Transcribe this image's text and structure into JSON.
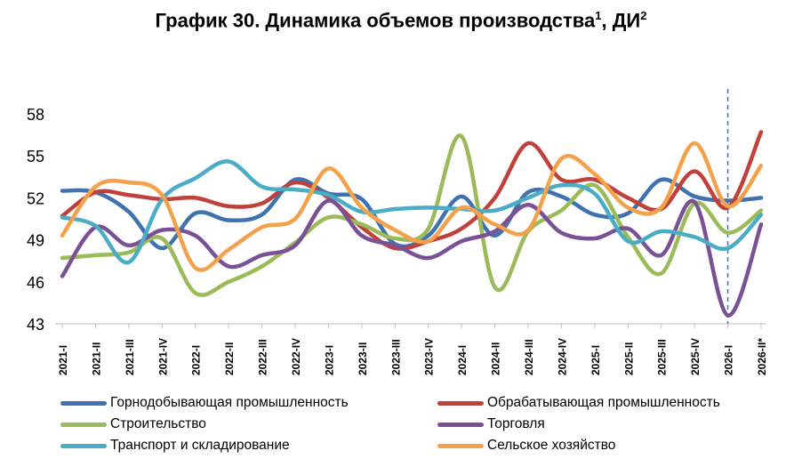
{
  "title": {
    "text": "График 30. Динамика объемов производства",
    "note1": "1",
    "sep": ", ДИ",
    "note2": "2"
  },
  "chart_data": {
    "type": "line",
    "categories": [
      "2021-I",
      "2021-II",
      "2021-III",
      "2021-IV",
      "2022-I",
      "2022-II",
      "2022-III",
      "2022-IV",
      "2023-I",
      "2023-II",
      "2023-III",
      "2023-IV",
      "2024-I",
      "2024-II",
      "2024-III",
      "2024-IV",
      "2025-I",
      "2025-II",
      "2025-III",
      "2025-IV",
      "2026-I",
      "2026-II*"
    ],
    "ylim": [
      43,
      58
    ],
    "yticks": [
      43,
      46,
      49,
      52,
      55,
      58
    ],
    "grid": false,
    "legend_position": "bottom",
    "vertical_marker_category": "2026-I",
    "series": [
      {
        "name": "Горнодобывающая промышленность",
        "color": "#3F72AF",
        "values": [
          52.5,
          52.4,
          51.0,
          48.4,
          50.9,
          50.4,
          50.8,
          53.3,
          52.3,
          51.9,
          48.7,
          49.3,
          52.1,
          49.3,
          52.4,
          52.1,
          50.8,
          50.9,
          53.3,
          52.1,
          51.8,
          52.0
        ]
      },
      {
        "name": "Обрабатывающая промышленность",
        "color": "#C0403B",
        "values": [
          50.7,
          52.4,
          52.2,
          51.9,
          52.0,
          51.4,
          51.6,
          53.1,
          52.0,
          49.9,
          48.4,
          48.9,
          49.8,
          52.0,
          55.9,
          53.3,
          53.3,
          52.0,
          51.2,
          53.9,
          51.3,
          56.7
        ]
      },
      {
        "name": "Строительство",
        "color": "#9BBB59",
        "values": [
          47.7,
          47.9,
          48.1,
          49.1,
          45.2,
          46.0,
          47.1,
          48.8,
          50.6,
          50.1,
          49.1,
          49.8,
          56.4,
          45.6,
          49.6,
          51.1,
          52.9,
          49.2,
          46.6,
          51.6,
          49.5,
          51.1
        ]
      },
      {
        "name": "Торговля",
        "color": "#7A5195",
        "values": [
          46.4,
          49.9,
          48.6,
          49.7,
          49.3,
          47.1,
          47.9,
          48.6,
          51.8,
          49.3,
          48.6,
          47.7,
          48.9,
          49.6,
          51.5,
          49.5,
          49.1,
          49.8,
          47.9,
          51.7,
          43.6,
          50.1
        ]
      },
      {
        "name": "Транспорт и складирование",
        "color": "#4BACC6",
        "values": [
          50.6,
          50.0,
          47.4,
          51.9,
          53.4,
          54.6,
          52.8,
          52.6,
          52.2,
          51.0,
          51.2,
          51.3,
          51.2,
          51.1,
          52.0,
          52.9,
          52.3,
          48.9,
          49.6,
          49.2,
          48.4,
          50.8
        ]
      },
      {
        "name": "Сельское хозяйство",
        "color": "#F4A14B",
        "values": [
          49.3,
          52.8,
          53.1,
          52.2,
          47.0,
          48.3,
          49.9,
          50.5,
          54.1,
          51.3,
          49.7,
          48.9,
          51.3,
          50.1,
          49.7,
          54.8,
          53.7,
          51.3,
          51.3,
          55.9,
          51.4,
          54.3
        ]
      }
    ]
  }
}
